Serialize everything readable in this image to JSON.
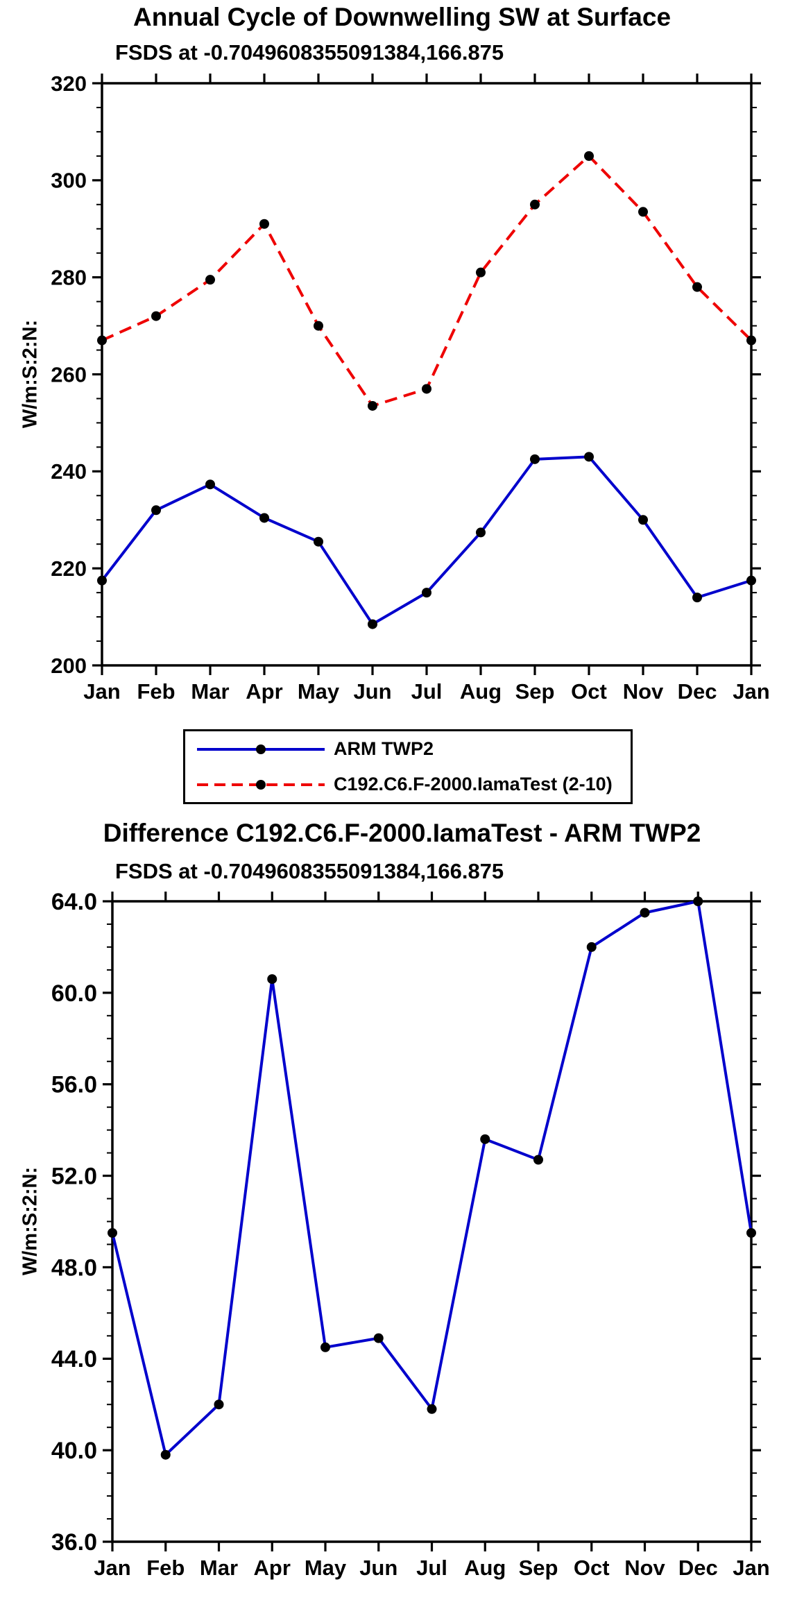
{
  "chart_data": [
    {
      "type": "line",
      "name": "annual-cycle",
      "title": "Annual Cycle of Downwelling SW at Surface",
      "subtitle": "FSDS at -0.7049608355091384,166.875",
      "ylabel": "W/m:S:2:N:",
      "xlabel": "",
      "categories": [
        "Jan",
        "Feb",
        "Mar",
        "Apr",
        "May",
        "Jun",
        "Jul",
        "Aug",
        "Sep",
        "Oct",
        "Nov",
        "Dec",
        "Jan"
      ],
      "ylim": [
        200,
        320
      ],
      "yticks": [
        200,
        220,
        240,
        260,
        280,
        300,
        320
      ],
      "ytick_labels": [
        "200",
        "220",
        "240",
        "260",
        "280",
        "300",
        "320"
      ],
      "yminor_step": 5,
      "grid": false,
      "legend_position": "below",
      "series": [
        {
          "name": "ARM TWP2",
          "color": "#0000cc",
          "style": "solid",
          "marker": "filled-circle",
          "marker_color": "#000000",
          "values": [
            217.5,
            232,
            237.3,
            230.4,
            225.5,
            208.5,
            215,
            227.4,
            242.5,
            243,
            230,
            214,
            217.5
          ]
        },
        {
          "name": "C192.C6.F-2000.IamaTest (2-10)",
          "color": "#ee0000",
          "style": "dashed",
          "marker": "filled-circle",
          "marker_color": "#000000",
          "values": [
            267,
            272,
            279.5,
            291,
            270,
            253.5,
            257,
            281,
            295,
            305,
            293.5,
            278,
            267
          ]
        }
      ]
    },
    {
      "type": "line",
      "name": "difference",
      "title": "Difference C192.C6.F-2000.IamaTest - ARM TWP2",
      "subtitle": "FSDS at -0.7049608355091384,166.875",
      "ylabel": "W/m:S:2:N:",
      "xlabel": "",
      "categories": [
        "Jan",
        "Feb",
        "Mar",
        "Apr",
        "May",
        "Jun",
        "Jul",
        "Aug",
        "Sep",
        "Oct",
        "Nov",
        "Dec",
        "Jan"
      ],
      "ylim": [
        36,
        64
      ],
      "yticks": [
        36,
        40,
        44,
        48,
        52,
        56,
        60,
        64
      ],
      "ytick_labels": [
        "36.0",
        "40.0",
        "44.0",
        "48.0",
        "52.0",
        "56.0",
        "60.0",
        "64.0"
      ],
      "yminor_step": 1,
      "grid": false,
      "legend_position": "none",
      "series": [
        {
          "name": "C192.C6.F-2000.IamaTest - ARM TWP2",
          "color": "#0000cc",
          "style": "solid",
          "marker": "filled-circle",
          "marker_color": "#000000",
          "values": [
            49.5,
            39.8,
            42.0,
            60.6,
            44.5,
            44.9,
            41.8,
            53.6,
            52.7,
            62.0,
            63.5,
            64.0,
            49.5
          ]
        }
      ]
    }
  ]
}
